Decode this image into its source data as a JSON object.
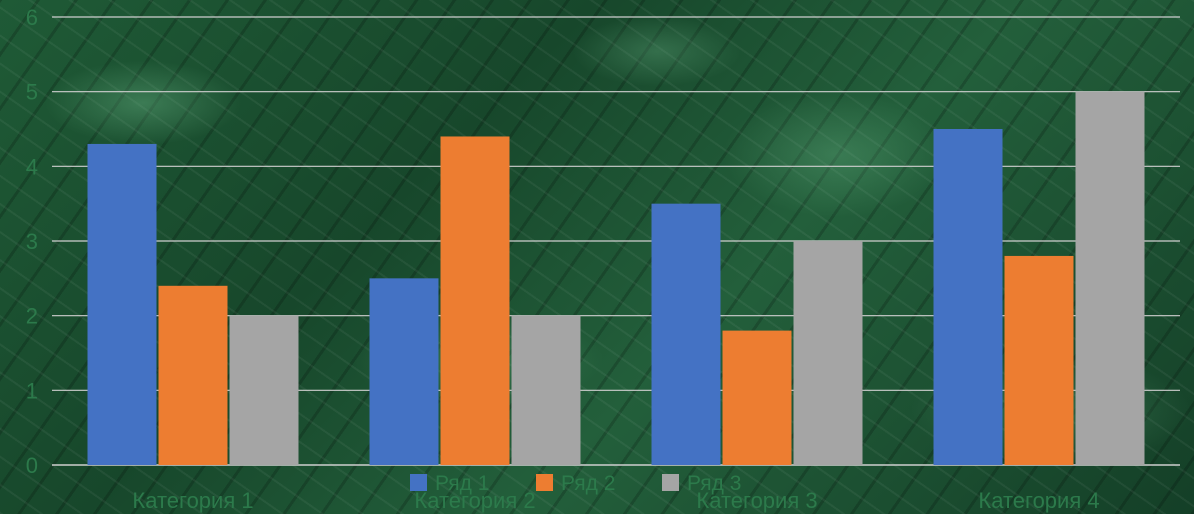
{
  "chart_data": {
    "type": "bar",
    "categories": [
      "Категория 1",
      "Категория 2",
      "Категория 3",
      "Категория 4"
    ],
    "series": [
      {
        "name": "Ряд 1",
        "values": [
          4.3,
          2.5,
          3.5,
          4.5
        ],
        "color": "#4472C4"
      },
      {
        "name": "Ряд 2",
        "values": [
          2.4,
          4.4,
          1.8,
          2.8
        ],
        "color": "#ED7D31"
      },
      {
        "name": "Ряд 3",
        "values": [
          2,
          2,
          3,
          5
        ],
        "color": "#A5A5A5"
      }
    ],
    "ylim": [
      0,
      6
    ],
    "yticks": [
      "0",
      "1",
      "2",
      "3",
      "4",
      "5",
      "6"
    ],
    "grid": true,
    "legend_position": "bottom",
    "title": "",
    "xlabel": "",
    "ylabel": ""
  },
  "colors": {
    "gridline": "#cfcfcf",
    "label": "#2c7a4b"
  }
}
